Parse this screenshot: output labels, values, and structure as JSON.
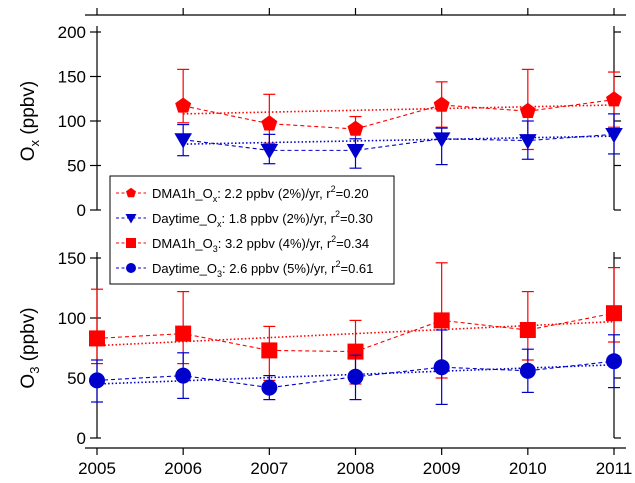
{
  "chart_data": [
    {
      "type": "scatter",
      "panel": "top",
      "x": [
        2005,
        2006,
        2007,
        2008,
        2009,
        2010,
        2011
      ],
      "xlim": [
        2005,
        2011
      ],
      "ylim": [
        0,
        200
      ],
      "yticks": [
        0,
        50,
        100,
        150,
        200
      ],
      "ylabel": {
        "main": "O",
        "sub": "x",
        "units": " (ppbv)"
      },
      "grid": false,
      "series": [
        {
          "name": "DMA1h_Ox",
          "color": "#ff0000",
          "marker": "pentagon",
          "values": [
            null,
            117,
            97,
            91,
            118,
            111,
            124
          ],
          "err_hi": [
            null,
            158,
            130,
            105,
            144,
            158,
            155
          ],
          "err_lo": [
            null,
            98,
            75,
            70,
            93,
            68,
            93
          ],
          "trend": [
            null,
            108,
            110,
            112,
            114,
            116,
            118
          ]
        },
        {
          "name": "Daytime_Ox",
          "color": "#0000cc",
          "marker": "triangle-down",
          "values": [
            null,
            79,
            67,
            67,
            80,
            78,
            85
          ],
          "err_hi": [
            null,
            96,
            85,
            80,
            92,
            100,
            108
          ],
          "err_lo": [
            null,
            61,
            52,
            47,
            51,
            57,
            63
          ],
          "trend": [
            null,
            74,
            76,
            77,
            79,
            81,
            83
          ]
        }
      ],
      "legend": {
        "placement": "bottom-left",
        "entries": [
          {
            "marker": "pentagon",
            "color": "#ff0000",
            "name": "DMA1h_O",
            "sub": "x",
            "text": ":  2.2 ppbv (2%)/yr, r",
            "sup": "2",
            "tail": "=0.20"
          },
          {
            "marker": "triangle-down",
            "color": "#0000cc",
            "name": "Daytime_O",
            "sub": "x",
            "text": ": 1.8 ppbv (2%)/yr, r",
            "sup": "2",
            "tail": "=0.30"
          },
          {
            "marker": "square",
            "color": "#ff0000",
            "name": "DMA1h_O",
            "sub": "3",
            "text": ":  3.2 ppbv (4%)/yr, r",
            "sup": "2",
            "tail": "=0.34"
          },
          {
            "marker": "circle",
            "color": "#0000cc",
            "name": "Daytime_O",
            "sub": "3",
            "text": ": 2.6 ppbv (5%)/yr, r",
            "sup": "2",
            "tail": "=0.61"
          }
        ]
      }
    },
    {
      "type": "scatter",
      "panel": "bottom",
      "x": [
        2005,
        2006,
        2007,
        2008,
        2009,
        2010,
        2011
      ],
      "xlim": [
        2005,
        2011
      ],
      "ylim": [
        0,
        150
      ],
      "yticks": [
        0,
        50,
        100,
        150
      ],
      "xticks": [
        2005,
        2006,
        2007,
        2008,
        2009,
        2010,
        2011
      ],
      "ylabel": {
        "main": "O",
        "sub": "3",
        "units": " (ppbv)"
      },
      "grid": false,
      "series": [
        {
          "name": "DMA1h_O3",
          "color": "#ff0000",
          "marker": "square",
          "values": [
            83,
            87,
            73,
            72,
            98,
            90,
            104
          ],
          "err_hi": [
            124,
            122,
            93,
            98,
            146,
            122,
            142
          ],
          "err_lo": [
            62,
            62,
            48,
            45,
            50,
            65,
            80
          ],
          "trend": [
            77,
            79,
            82,
            84,
            86,
            89,
            97
          ]
        },
        {
          "name": "Daytime_O3",
          "color": "#0000cc",
          "marker": "circle",
          "values": [
            48,
            52,
            42,
            51,
            59,
            56,
            64
          ],
          "err_hi": [
            65,
            71,
            52,
            69,
            90,
            74,
            86
          ],
          "err_lo": [
            30,
            33,
            32,
            32,
            28,
            38,
            42
          ],
          "trend": [
            45,
            48,
            50,
            52,
            55,
            58,
            61
          ]
        }
      ]
    }
  ]
}
